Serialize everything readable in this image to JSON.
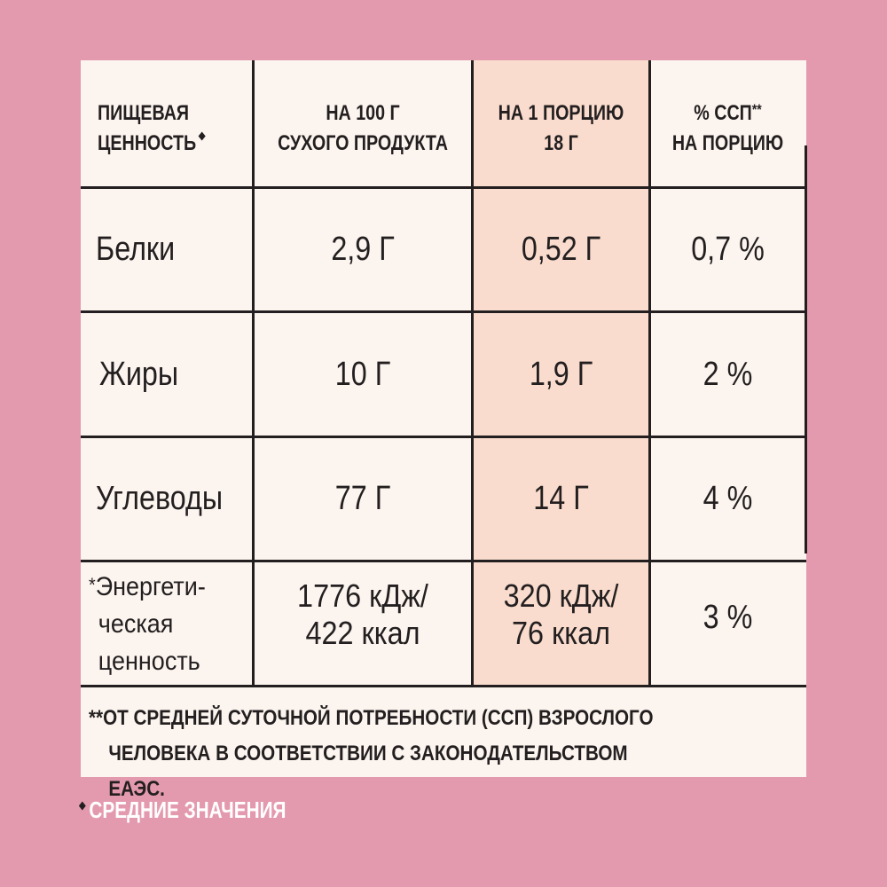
{
  "colors": {
    "background": "#e49aae",
    "card": "#fcf4ee",
    "highlight_column": "#f9dccd",
    "text": "#231f20",
    "footnote_text": "#ffffff"
  },
  "icons": {
    "header_marker": "diamond-icon",
    "footnote_marker": "diamond-icon"
  },
  "table": {
    "headers": {
      "col1_line1": "ПИЩЕВАЯ",
      "col1_line2": "ЦЕННОСТЬ",
      "col2_line1": "НА 100 Г",
      "col2_line2": "СУХОГО ПРОДУКТА",
      "col3_line1": "НА 1 ПОРЦИЮ",
      "col3_line2": "18 Г",
      "col4_line1": "% ССП",
      "col4_sup": "**",
      "col4_line2": "НА ПОРЦИЮ"
    },
    "rows": [
      {
        "name": "Белки",
        "per100": "2,9 Г",
        "perServing": "0,52 Г",
        "rdi": "0,7 %"
      },
      {
        "name": "Жиры",
        "per100": "10 Г",
        "perServing": "1,9 Г",
        "rdi": "2 %"
      },
      {
        "name": "Углеводы",
        "per100": "77 Г",
        "perServing": "14 Г",
        "rdi": "4 %"
      }
    ],
    "energy": {
      "mark": "*",
      "label_line1": "Энергети-",
      "label_line2": "ческая",
      "label_line3": "ценность",
      "per100_line1": "1776 кДж/",
      "per100_line2": "422 ккал",
      "perServing_line1": "320 кДж/",
      "perServing_line2": "76 ккал",
      "rdi": "3 %"
    }
  },
  "footnote": {
    "line1": "**ОТ СРЕДНЕЙ СУТОЧНОЙ ПОТРЕБНОСТИ (ССП) ВЗРОСЛОГО",
    "line2": "ЧЕЛОВЕКА В СООТВЕТСТВИИ С ЗАКОНОДАТЕЛЬСТВОМ ЕАЭС."
  },
  "average_note": "СРЕДНИЕ ЗНАЧЕНИЯ"
}
